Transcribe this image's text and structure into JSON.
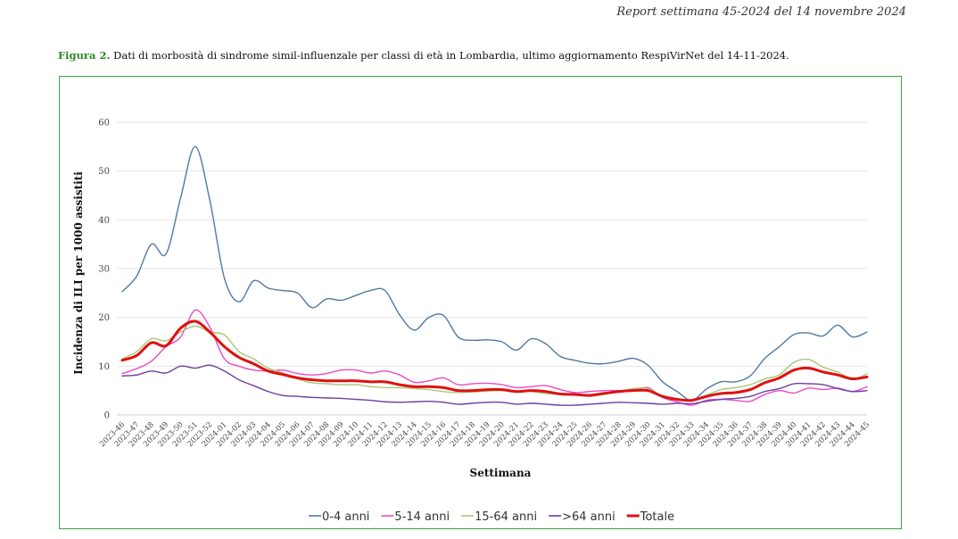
{
  "header": "Report settimana 45-2024 del 14 novembre 2024",
  "caption": {
    "figure_label": "Figura 2.",
    "text": "Dati di morbosità di sindrome simil-influenzale per classi di età in Lombardia, ultimo aggiornamento RespiVirNet del 14-11-2024."
  },
  "chart_data": {
    "type": "line",
    "xlabel": "Settimana",
    "ylabel": "Incidenza di ILI per 1000 assistiti",
    "ylim": [
      0,
      60
    ],
    "yticks": [
      0,
      10,
      20,
      30,
      40,
      50,
      60
    ],
    "grid": true,
    "legend_position": "bottom",
    "categories": [
      "2023-46",
      "2023-47",
      "2023-48",
      "2023-49",
      "2023-50",
      "2023-51",
      "2023-52",
      "2024-01",
      "2024-02",
      "2024-03",
      "2024-04",
      "2024-05",
      "2024-06",
      "2024-07",
      "2024-08",
      "2024-09",
      "2024-10",
      "2024-11",
      "2024-12",
      "2024-13",
      "2024-14",
      "2024-15",
      "2024-16",
      "2024-17",
      "2024-18",
      "2024-19",
      "2024-20",
      "2024-21",
      "2024-22",
      "2024-23",
      "2024-24",
      "2024-25",
      "2024-26",
      "2024-27",
      "2024-28",
      "2024-29",
      "2024-30",
      "2024-31",
      "2024-32",
      "2024-33",
      "2024-34",
      "2024-35",
      "2024-36",
      "2024-37",
      "2024-38",
      "2024-39",
      "2024-40",
      "2024-41",
      "2024-42",
      "2024-43",
      "2024-44",
      "2024-45"
    ],
    "series": [
      {
        "name": "0-4 anni",
        "color": "#4f79a6",
        "width": 1.4,
        "values": [
          25.3,
          28.5,
          35.0,
          33.0,
          44.5,
          55.0,
          44.0,
          28.0,
          23.2,
          27.5,
          26.0,
          25.5,
          25.0,
          22.0,
          23.8,
          23.5,
          24.5,
          25.5,
          25.5,
          20.5,
          17.4,
          20.0,
          20.4,
          16.0,
          15.3,
          15.4,
          15.0,
          13.3,
          15.6,
          14.6,
          12.0,
          11.2,
          10.6,
          10.5,
          11.0,
          11.6,
          10.2,
          6.8,
          4.8,
          3.0,
          5.3,
          6.8,
          6.8,
          8.0,
          11.6,
          14.0,
          16.5,
          16.8,
          16.2,
          18.4,
          16.0,
          17.0
        ]
      },
      {
        "name": "5-14 anni",
        "color": "#e94cc4",
        "width": 1.4,
        "values": [
          8.5,
          9.5,
          11.0,
          14.0,
          16.0,
          21.5,
          18.0,
          11.5,
          10.0,
          9.2,
          9.0,
          9.2,
          8.5,
          8.2,
          8.5,
          9.2,
          9.2,
          8.6,
          9.0,
          8.2,
          6.7,
          7.0,
          7.6,
          6.2,
          6.4,
          6.5,
          6.2,
          5.6,
          5.8,
          6.0,
          5.2,
          4.6,
          4.8,
          5.0,
          5.0,
          5.0,
          5.6,
          3.6,
          2.7,
          2.0,
          3.0,
          3.2,
          3.0,
          2.8,
          4.2,
          5.0,
          4.5,
          5.5,
          5.2,
          5.5,
          4.8,
          5.8
        ]
      },
      {
        "name": "15-64 anni",
        "color": "#a8c877",
        "width": 1.4,
        "values": [
          11.5,
          13.0,
          15.6,
          15.2,
          17.0,
          18.2,
          17.0,
          16.4,
          13.0,
          11.5,
          9.6,
          8.6,
          7.4,
          6.6,
          6.4,
          6.2,
          6.2,
          5.8,
          5.6,
          5.6,
          5.4,
          5.2,
          4.8,
          4.6,
          4.7,
          4.9,
          5.0,
          4.8,
          4.8,
          4.4,
          4.2,
          4.2,
          4.2,
          4.6,
          4.8,
          5.4,
          5.4,
          3.8,
          3.2,
          3.0,
          4.0,
          5.2,
          5.6,
          6.2,
          7.4,
          8.2,
          10.8,
          11.4,
          9.8,
          8.8,
          7.4,
          8.4
        ]
      },
      {
        "name": ">64 anni",
        "color": "#6c3fa0",
        "width": 1.4,
        "values": [
          8.0,
          8.2,
          9.0,
          8.6,
          10.0,
          9.6,
          10.2,
          9.0,
          7.2,
          6.0,
          4.8,
          4.0,
          3.8,
          3.6,
          3.5,
          3.4,
          3.2,
          3.0,
          2.7,
          2.6,
          2.7,
          2.8,
          2.6,
          2.2,
          2.4,
          2.6,
          2.6,
          2.2,
          2.4,
          2.2,
          2.0,
          2.0,
          2.2,
          2.4,
          2.6,
          2.5,
          2.4,
          2.2,
          2.4,
          2.3,
          2.8,
          3.2,
          3.4,
          3.8,
          4.8,
          5.4,
          6.4,
          6.4,
          6.2,
          5.4,
          4.8,
          5.0
        ]
      },
      {
        "name": "Totale",
        "color": "#e01010",
        "width": 3,
        "values": [
          11.2,
          12.2,
          14.8,
          14.2,
          17.8,
          19.2,
          17.0,
          14.0,
          11.8,
          10.5,
          9.0,
          8.3,
          7.6,
          7.2,
          7.0,
          7.0,
          7.0,
          6.8,
          6.8,
          6.2,
          5.8,
          5.8,
          5.6,
          5.0,
          5.0,
          5.2,
          5.2,
          4.8,
          5.0,
          4.8,
          4.3,
          4.2,
          4.0,
          4.4,
          4.8,
          5.0,
          5.0,
          3.8,
          3.2,
          3.0,
          3.8,
          4.4,
          4.6,
          5.2,
          6.6,
          7.6,
          9.2,
          9.6,
          8.8,
          8.2,
          7.4,
          7.8
        ]
      }
    ]
  }
}
